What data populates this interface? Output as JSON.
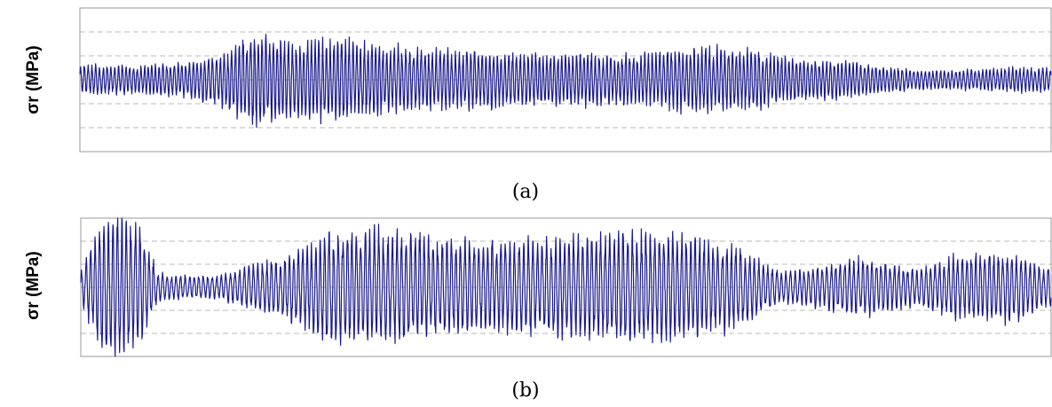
{
  "colors": {
    "series": "#1a1a8c",
    "grid": "#b8b8b8",
    "frame": "#9a9a9a"
  },
  "chart_data": [
    {
      "type": "line",
      "panel": "(a)",
      "ylabel": "σr (MPa)",
      "caption": "(a)",
      "grid": true,
      "grid_style": "dashed horizontal",
      "x_ticks_visible": false,
      "y_ticks_visible": false,
      "ylim": [
        -3,
        3
      ],
      "gridlines_y": [
        -2,
        -1,
        0,
        1,
        2
      ],
      "x_range": [
        0,
        1000
      ],
      "envelope": {
        "x": [
          0,
          60,
          100,
          140,
          180,
          210,
          260,
          320,
          380,
          440,
          500,
          560,
          620,
          680,
          740,
          800,
          860,
          900,
          960,
          1000
        ],
        "amplitude": [
          0.6,
          0.6,
          0.7,
          1.0,
          1.9,
          1.6,
          1.7,
          1.4,
          1.2,
          1.1,
          1.1,
          1.0,
          1.3,
          1.3,
          0.9,
          0.7,
          0.4,
          0.4,
          0.5,
          0.5
        ]
      }
    },
    {
      "type": "line",
      "panel": "(b)",
      "ylabel": "σr (MPa)",
      "caption": "(b)",
      "grid": true,
      "grid_style": "dashed horizontal",
      "x_ticks_visible": false,
      "y_ticks_visible": false,
      "ylim": [
        -3,
        3
      ],
      "gridlines_y": [
        -3,
        -2,
        -1,
        0,
        1,
        2
      ],
      "x_range": [
        0,
        1000
      ],
      "envelope": {
        "x": [
          0,
          20,
          40,
          60,
          80,
          100,
          140,
          180,
          220,
          260,
          300,
          340,
          380,
          440,
          500,
          560,
          620,
          680,
          720,
          760,
          800,
          860,
          900,
          960,
          1000
        ],
        "amplitude": [
          0.7,
          2.8,
          3.0,
          2.5,
          0.6,
          0.5,
          0.5,
          1.0,
          1.5,
          2.4,
          2.5,
          2.3,
          2.0,
          2.0,
          2.1,
          2.4,
          2.2,
          1.7,
          0.7,
          0.9,
          1.3,
          0.8,
          1.3,
          1.5,
          0.8
        ]
      }
    }
  ]
}
